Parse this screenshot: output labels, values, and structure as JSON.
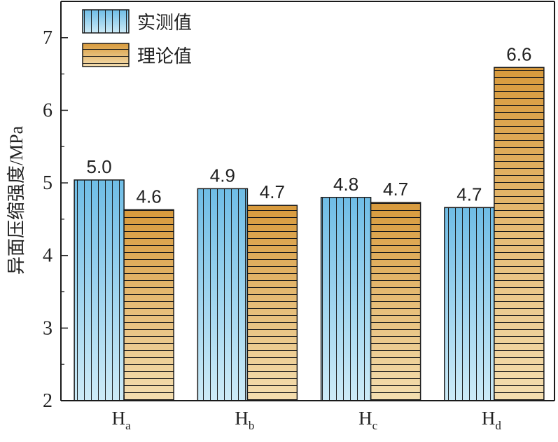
{
  "chart_data": {
    "type": "bar",
    "categories": [
      {
        "main": "H",
        "sub": "a"
      },
      {
        "main": "H",
        "sub": "b"
      },
      {
        "main": "H",
        "sub": "c"
      },
      {
        "main": "H",
        "sub": "d"
      }
    ],
    "series": [
      {
        "name": "实测值",
        "values": [
          5.0,
          4.9,
          4.8,
          4.7
        ],
        "labels": [
          "5.0",
          "4.9",
          "4.8",
          "4.7"
        ],
        "heights": [
          5.04,
          4.92,
          4.8,
          4.66
        ],
        "pattern": "vertical-stripes",
        "color_top": "#6fbde6",
        "color_bottom": "#cdebf7"
      },
      {
        "name": "理论值",
        "values": [
          4.6,
          4.7,
          4.7,
          6.6
        ],
        "labels": [
          "4.6",
          "4.7",
          "4.7",
          "6.6"
        ],
        "heights": [
          4.63,
          4.69,
          4.73,
          6.59
        ],
        "pattern": "horizontal-stripes",
        "color_top": "#d89a3c",
        "color_bottom": "#f4deb0"
      }
    ],
    "ylabel": "异面压缩强度/MPa",
    "xlabel": "",
    "ylim": [
      2,
      7.5
    ],
    "yticks": [
      "2",
      "3",
      "4",
      "5",
      "6",
      "7"
    ],
    "grid": false,
    "legend_position": "top-left"
  }
}
